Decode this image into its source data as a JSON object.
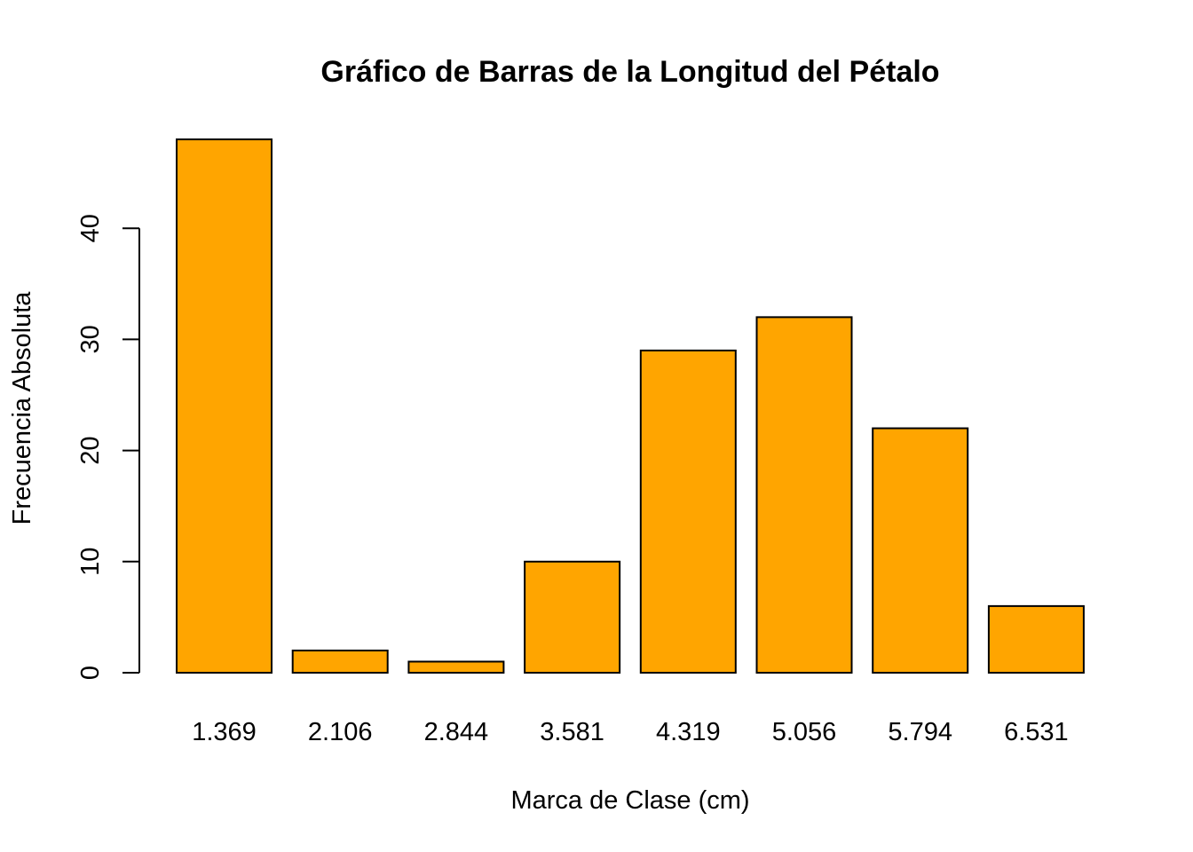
{
  "chart_data": {
    "type": "bar",
    "title": "Gráfico de Barras de la Longitud del Pétalo",
    "xlabel": "Marca de Clase (cm)",
    "ylabel": "Frecuencia Absoluta",
    "categories": [
      "1.369",
      "2.106",
      "2.844",
      "3.581",
      "4.319",
      "5.056",
      "5.794",
      "6.531"
    ],
    "values": [
      48,
      2,
      1,
      10,
      29,
      32,
      22,
      6
    ],
    "yticks": [
      0,
      10,
      20,
      30,
      40
    ],
    "ylim": [
      0,
      48
    ],
    "bar_color": "#FFA500",
    "grid": false
  }
}
